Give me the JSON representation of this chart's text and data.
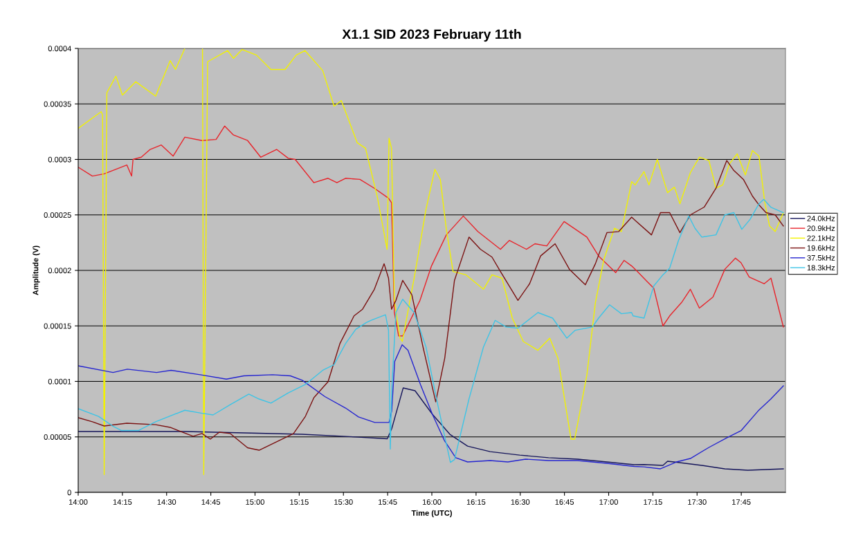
{
  "chart_data": {
    "type": "line",
    "title": "X1.1 SID 2023 February 11th",
    "xlabel": "Time (UTC)",
    "ylabel": "Amplitude (V)",
    "xlim": [
      14.0,
      18.0
    ],
    "xticks": [
      {
        "value": 14.0,
        "label": "14:00"
      },
      {
        "value": 14.25,
        "label": "14:15"
      },
      {
        "value": 14.5,
        "label": "14:30"
      },
      {
        "value": 14.75,
        "label": "14:45"
      },
      {
        "value": 15.0,
        "label": "15:00"
      },
      {
        "value": 15.25,
        "label": "15:15"
      },
      {
        "value": 15.5,
        "label": "15:30"
      },
      {
        "value": 15.75,
        "label": "15:45"
      },
      {
        "value": 16.0,
        "label": "16:00"
      },
      {
        "value": 16.25,
        "label": "16:15"
      },
      {
        "value": 16.5,
        "label": "16:30"
      },
      {
        "value": 16.75,
        "label": "16:45"
      },
      {
        "value": 17.0,
        "label": "17:00"
      },
      {
        "value": 17.25,
        "label": "17:15"
      },
      {
        "value": 17.5,
        "label": "17:30"
      },
      {
        "value": 17.75,
        "label": "17:45"
      }
    ],
    "ylim": [
      0,
      0.0004
    ],
    "yticks": [
      {
        "value": 0,
        "label": "0"
      },
      {
        "value": 5e-05,
        "label": "0.00005"
      },
      {
        "value": 0.0001,
        "label": "0.0001"
      },
      {
        "value": 0.00015,
        "label": "0.00015"
      },
      {
        "value": 0.0002,
        "label": "0.0002"
      },
      {
        "value": 0.00025,
        "label": "0.00025"
      },
      {
        "value": 0.0003,
        "label": "0.0003"
      },
      {
        "value": 0.00035,
        "label": "0.00035"
      },
      {
        "value": 0.0004,
        "label": "0.0004"
      }
    ],
    "grid": "y",
    "legend": "right",
    "marker": "none",
    "line_style": "solid",
    "series": [
      {
        "name": "24.0kHz",
        "color": "#14145a",
        "x": [
          14.0,
          14.278,
          14.607,
          14.937,
          15.267,
          15.585,
          15.748,
          15.773,
          15.838,
          15.905,
          16.003,
          16.102,
          16.202,
          16.33,
          16.497,
          16.66,
          16.825,
          16.99,
          17.145,
          17.2,
          17.307,
          17.333,
          17.37,
          17.527,
          17.657,
          17.787,
          17.988
        ],
        "values": [
          5.48e-05,
          5.48e-05,
          5.48e-05,
          5.36e-05,
          5.23e-05,
          4.98e-05,
          4.83e-05,
          5.73e-05,
          9.41e-05,
          9.16e-05,
          7.04e-05,
          5.23e-05,
          4.17e-05,
          3.67e-05,
          3.36e-05,
          3.12e-05,
          2.99e-05,
          2.74e-05,
          2.49e-05,
          2.51e-05,
          2.43e-05,
          2.8e-05,
          2.74e-05,
          2.43e-05,
          2.12e-05,
          1.99e-05,
          2.12e-05
        ]
      },
      {
        "name": "20.9kHz",
        "color": "#e8232a",
        "x": [
          14.0,
          14.08,
          14.147,
          14.275,
          14.302,
          14.31,
          14.357,
          14.407,
          14.47,
          14.537,
          14.603,
          14.7,
          14.78,
          14.828,
          14.878,
          14.958,
          15.032,
          15.122,
          15.188,
          15.227,
          15.333,
          15.413,
          15.463,
          15.512,
          15.593,
          15.675,
          15.755,
          15.772,
          15.788,
          15.812,
          15.835,
          15.933,
          15.998,
          16.082,
          16.178,
          16.26,
          16.388,
          16.438,
          16.535,
          16.583,
          16.65,
          16.748,
          16.877,
          16.943,
          17.04,
          17.087,
          17.13,
          17.162,
          17.217,
          17.255,
          17.307,
          17.345,
          17.412,
          17.462,
          17.513,
          17.59,
          17.657,
          17.717,
          17.748,
          17.795,
          17.88,
          17.918,
          17.988
        ],
        "values": [
          0.000293,
          0.000285,
          0.000287,
          0.000295,
          0.000285,
          0.0003,
          0.000302,
          0.000309,
          0.000313,
          0.000303,
          0.00032,
          0.000317,
          0.000318,
          0.00033,
          0.000322,
          0.000317,
          0.000302,
          0.000309,
          0.000301,
          0.0003,
          0.000279,
          0.000283,
          0.000279,
          0.000283,
          0.000282,
          0.000274,
          0.000265,
          0.000261,
          0.000162,
          0.000141,
          0.000141,
          0.000173,
          0.000204,
          0.000232,
          0.000249,
          0.000235,
          0.000219,
          0.000227,
          0.000219,
          0.000224,
          0.000222,
          0.000244,
          0.00023,
          0.000213,
          0.000198,
          0.000209,
          0.000204,
          0.000199,
          0.00019,
          0.000184,
          0.00015,
          0.000159,
          0.000171,
          0.000183,
          0.000166,
          0.000176,
          0.000201,
          0.000211,
          0.000207,
          0.000194,
          0.000188,
          0.000193,
          0.000149
        ]
      },
      {
        "name": "22.1kHz",
        "color": "#f2f200",
        "x": [
          14.0,
          14.13,
          14.138,
          14.147,
          14.162,
          14.213,
          14.25,
          14.325,
          14.438,
          14.52,
          14.55,
          14.603,
          14.65,
          14.703,
          14.71,
          14.732,
          14.845,
          14.878,
          14.927,
          15.008,
          15.09,
          15.17,
          15.233,
          15.283,
          15.383,
          15.447,
          15.488,
          15.578,
          15.625,
          15.692,
          15.747,
          15.758,
          15.772,
          15.788,
          15.82,
          15.833,
          15.9,
          15.967,
          16.017,
          16.048,
          16.082,
          16.12,
          16.193,
          16.292,
          16.34,
          16.397,
          16.455,
          16.517,
          16.6,
          16.667,
          16.713,
          16.787,
          16.808,
          16.877,
          16.925,
          16.973,
          17.033,
          17.072,
          17.13,
          17.15,
          17.2,
          17.228,
          17.275,
          17.333,
          17.372,
          17.403,
          17.462,
          17.513,
          17.567,
          17.607,
          17.645,
          17.683,
          17.727,
          17.773,
          17.813,
          17.85,
          17.883,
          17.91,
          17.942,
          17.988
        ],
        "values": [
          0.000328,
          0.000343,
          0.00034,
          1.6e-05,
          0.00036,
          0.000375,
          0.000358,
          0.00037,
          0.000357,
          0.000389,
          0.000381,
          0.0004,
          null,
          0.0004,
          1.6e-05,
          0.000388,
          0.000398,
          0.000391,
          0.000399,
          0.000394,
          0.000381,
          0.000381,
          0.000394,
          0.000398,
          0.00038,
          0.000348,
          0.000353,
          0.000315,
          0.00031,
          0.000266,
          0.000219,
          0.000319,
          0.00031,
          0.000173,
          0.000139,
          0.000136,
          0.000193,
          0.000255,
          0.000291,
          0.000282,
          0.000237,
          0.000199,
          0.000196,
          0.000183,
          0.000196,
          0.000193,
          0.000157,
          0.000136,
          0.000128,
          0.000139,
          0.000121,
          4.8e-05,
          4.8e-05,
          0.000106,
          0.000171,
          0.00021,
          0.000238,
          0.000235,
          0.00028,
          0.000277,
          0.000289,
          0.000277,
          0.0003,
          0.00027,
          0.000275,
          0.00026,
          0.000288,
          0.000302,
          0.000299,
          0.000274,
          0.000277,
          0.000296,
          0.000305,
          0.000286,
          0.000308,
          0.000303,
          0.000261,
          0.00024,
          0.000235,
          0.000252
        ]
      },
      {
        "name": "19.6kHz",
        "color": "#7a1010",
        "x": [
          14.0,
          14.08,
          14.147,
          14.275,
          14.438,
          14.52,
          14.65,
          14.7,
          14.747,
          14.798,
          14.86,
          14.958,
          15.023,
          15.122,
          15.218,
          15.285,
          15.333,
          15.413,
          15.48,
          15.56,
          15.608,
          15.675,
          15.73,
          15.755,
          15.772,
          15.797,
          15.835,
          15.887,
          15.95,
          16.022,
          16.073,
          16.128,
          16.21,
          16.275,
          16.34,
          16.388,
          16.487,
          16.553,
          16.615,
          16.697,
          16.778,
          16.868,
          16.925,
          16.99,
          17.057,
          17.13,
          17.15,
          17.242,
          17.293,
          17.345,
          17.403,
          17.462,
          17.54,
          17.607,
          17.668,
          17.708,
          17.762,
          17.813,
          17.85,
          17.89,
          17.942,
          17.988
        ],
        "values": [
          6.73e-05,
          6.36e-05,
          5.98e-05,
          6.23e-05,
          6.1e-05,
          5.86e-05,
          5.05e-05,
          5.3e-05,
          4.8e-05,
          5.42e-05,
          5.3e-05,
          4.02e-05,
          3.8e-05,
          4.55e-05,
          5.3e-05,
          6.85e-05,
          8.54e-05,
          9.97e-05,
          0.000134,
          0.000159,
          0.000165,
          0.000183,
          0.000206,
          0.000193,
          0.000165,
          0.000173,
          0.000191,
          0.000178,
          0.000131,
          8.16e-05,
          0.000121,
          0.000191,
          0.00023,
          0.000219,
          0.000212,
          0.000199,
          0.000173,
          0.000188,
          0.000213,
          0.000224,
          0.000201,
          0.000187,
          0.000206,
          0.000234,
          0.000235,
          0.000248,
          0.000245,
          0.000232,
          0.000252,
          0.000252,
          0.000234,
          0.00025,
          0.000257,
          0.000274,
          0.000299,
          0.00029,
          0.000282,
          0.000267,
          0.000259,
          0.000252,
          0.00025,
          0.00024
        ]
      },
      {
        "name": "37.5kHz",
        "color": "#2424d0",
        "x": [
          14.0,
          14.197,
          14.278,
          14.443,
          14.525,
          14.69,
          14.838,
          14.937,
          15.1,
          15.2,
          15.267,
          15.395,
          15.512,
          15.585,
          15.677,
          15.758,
          15.773,
          15.79,
          15.832,
          15.865,
          15.937,
          16.003,
          16.07,
          16.135,
          16.202,
          16.33,
          16.43,
          16.53,
          16.66,
          16.76,
          16.825,
          16.99,
          17.145,
          17.2,
          17.293,
          17.383,
          17.462,
          17.567,
          17.668,
          17.748,
          17.85,
          17.917,
          17.988
        ],
        "values": [
          0.000114,
          0.000108,
          0.000111,
          0.000108,
          0.00011,
          0.000106,
          0.000102,
          0.000105,
          0.000106,
          0.000105,
          0.000101,
          8.63e-05,
          7.6e-05,
          6.8e-05,
          6.3e-05,
          6.3e-05,
          7.32e-05,
          0.000118,
          0.000133,
          0.000128,
          9.66e-05,
          7.04e-05,
          4.7e-05,
          3.12e-05,
          2.74e-05,
          2.87e-05,
          2.74e-05,
          2.99e-05,
          2.87e-05,
          2.87e-05,
          2.87e-05,
          2.62e-05,
          2.34e-05,
          2.3e-05,
          2.12e-05,
          2.74e-05,
          3.05e-05,
          4.05e-05,
          4.92e-05,
          5.55e-05,
          7.42e-05,
          8.41e-05,
          9.59e-05
        ]
      },
      {
        "name": "18.3kHz",
        "color": "#3cc4e6",
        "x": [
          14.0,
          14.115,
          14.195,
          14.243,
          14.342,
          14.438,
          14.603,
          14.7,
          14.763,
          14.86,
          14.965,
          15.023,
          15.09,
          15.188,
          15.285,
          15.383,
          15.447,
          15.512,
          15.57,
          15.63,
          15.657,
          15.738,
          15.755,
          15.765,
          15.773,
          15.797,
          15.835,
          15.9,
          15.967,
          16.03,
          16.105,
          16.128,
          16.21,
          16.292,
          16.358,
          16.42,
          16.487,
          16.6,
          16.683,
          16.763,
          16.81,
          16.908,
          16.943,
          17.005,
          17.072,
          17.13,
          17.138,
          17.2,
          17.255,
          17.307,
          17.345,
          17.395,
          17.453,
          17.488,
          17.527,
          17.607,
          17.657,
          17.708,
          17.753,
          17.8,
          17.85,
          17.877,
          17.917,
          17.988
        ],
        "values": [
          7.54e-05,
          6.85e-05,
          5.98e-05,
          5.58e-05,
          5.58e-05,
          6.36e-05,
          7.4e-05,
          7.13e-05,
          6.98e-05,
          7.91e-05,
          8.85e-05,
          8.41e-05,
          8.04e-05,
          8.97e-05,
          9.72e-05,
          0.00011,
          0.000115,
          0.000134,
          0.000147,
          0.000153,
          0.000155,
          0.00016,
          0.000146,
          3.9e-05,
          9.2e-05,
          0.000162,
          0.000174,
          0.000162,
          0.000131,
          8.16e-05,
          2.7e-05,
          2.95e-05,
          8.41e-05,
          0.000131,
          0.000155,
          0.000149,
          0.000148,
          0.000162,
          0.000157,
          0.000139,
          0.000146,
          0.000149,
          0.000157,
          0.000169,
          0.000161,
          0.000162,
          0.000159,
          0.000157,
          0.000186,
          0.000196,
          0.000202,
          0.000227,
          0.000249,
          0.000238,
          0.00023,
          0.000232,
          0.00025,
          0.000252,
          0.000237,
          0.000246,
          0.00026,
          0.000264,
          0.000257,
          0.000252
        ]
      }
    ]
  }
}
